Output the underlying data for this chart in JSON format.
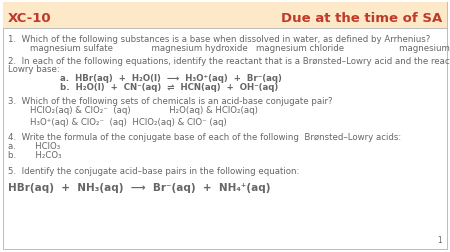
{
  "bg_color": "#ffffff",
  "header_bg": "#fde8c8",
  "title_left": "XC-10",
  "title_right": "Due at the time of SA",
  "title_color": "#c0392b",
  "title_fontsize": 9.5,
  "border_color": "#bbbbbb",
  "text_color": "#666666",
  "page_number": "1"
}
